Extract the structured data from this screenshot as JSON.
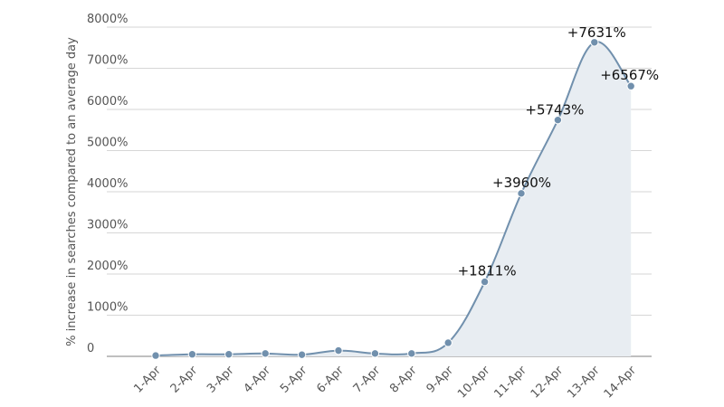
{
  "chart_data": {
    "type": "area",
    "ylabel": "% increase in searches compared to an average day",
    "xlabel": "",
    "categories": [
      "1-Apr",
      "2-Apr",
      "3-Apr",
      "4-Apr",
      "5-Apr",
      "6-Apr",
      "7-Apr",
      "8-Apr",
      "9-Apr",
      "10-Apr",
      "11-Apr",
      "12-Apr",
      "13-Apr",
      "14-Apr"
    ],
    "values": [
      20,
      50,
      50,
      70,
      40,
      140,
      70,
      70,
      330,
      1811,
      3960,
      5743,
      7631,
      6567
    ],
    "ylim": [
      0,
      8000
    ],
    "yticks": [
      0,
      1000,
      2000,
      3000,
      4000,
      5000,
      6000,
      7000,
      8000
    ],
    "ytick_labels": [
      "0",
      "1000%",
      "2000%",
      "3000%",
      "4000%",
      "5000%",
      "6000%",
      "7000%",
      "8000%"
    ],
    "data_labels": [
      {
        "category": "10-Apr",
        "text": "+1811%"
      },
      {
        "category": "11-Apr",
        "text": "+3960%"
      },
      {
        "category": "12-Apr",
        "text": "+5743%"
      },
      {
        "category": "13-Apr",
        "text": "+7631%"
      },
      {
        "category": "14-Apr",
        "text": "+6567%"
      }
    ],
    "grid": true,
    "colors": {
      "line": "#7190ad",
      "fill": "#e8edf2",
      "marker": "#7190ad"
    }
  }
}
